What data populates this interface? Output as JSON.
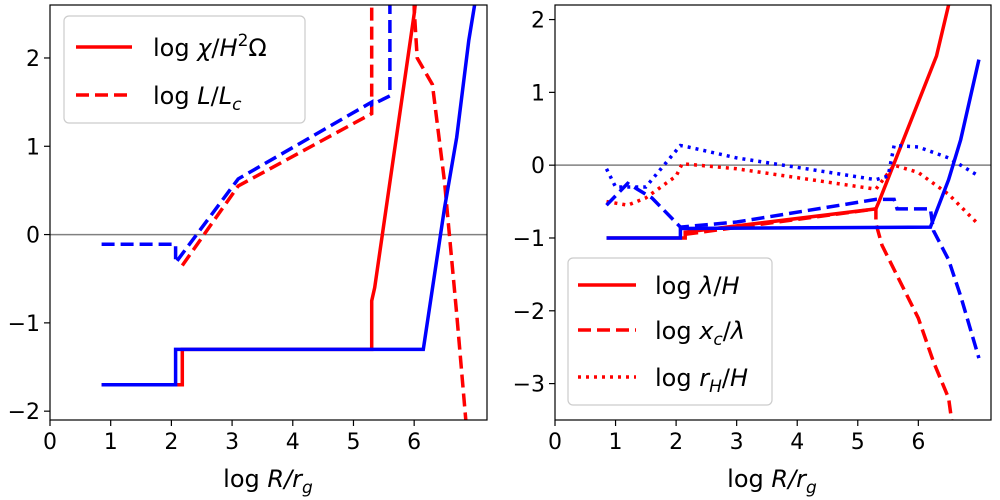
{
  "chart_data": [
    {
      "type": "line",
      "xlabel": "log R/r_g",
      "xlim": [
        0,
        7.2
      ],
      "ylim": [
        -2.1,
        2.6
      ],
      "xticks": [
        0,
        1,
        2,
        3,
        4,
        5,
        6
      ],
      "yticks": [
        -2,
        -1,
        0,
        1,
        2
      ],
      "hline": 0,
      "legend": {
        "position": "top-left",
        "entries": [
          {
            "label": "log χ/H²Ω",
            "color": "#ff0000",
            "style": "solid"
          },
          {
            "label": "log L/L_c",
            "color": "#ff0000",
            "style": "dashed"
          }
        ]
      },
      "series": [
        {
          "name": "red-solid",
          "color": "#ff0000",
          "style": "solid",
          "x": [
            0.85,
            2.18,
            2.18,
            5.3,
            5.3,
            5.35,
            6.0,
            6.02
          ],
          "y": [
            -1.7,
            -1.7,
            -1.3,
            -1.3,
            -0.75,
            -0.6,
            2.5,
            2.62
          ]
        },
        {
          "name": "red-dashed",
          "color": "#ff0000",
          "style": "dashed",
          "x": [
            2.18,
            3.1,
            5.3,
            5.3,
            6.0,
            6.0,
            6.05,
            6.3,
            6.5,
            6.7,
            6.85
          ],
          "y": [
            -0.35,
            0.55,
            1.37,
            2.62,
            2.62,
            2.55,
            2.0,
            1.7,
            0.6,
            -0.9,
            -2.1
          ]
        },
        {
          "name": "blue-solid",
          "color": "#0000ff",
          "style": "solid",
          "x": [
            0.85,
            2.07,
            2.07,
            6.15,
            6.5,
            6.7,
            6.9,
            7.0
          ],
          "y": [
            -1.7,
            -1.7,
            -1.3,
            -1.3,
            0.3,
            1.1,
            2.2,
            2.62
          ]
        },
        {
          "name": "blue-dashed",
          "color": "#0000ff",
          "style": "dashed",
          "x": [
            0.85,
            2.07,
            2.07,
            3.1,
            5.3,
            5.3,
            5.6,
            5.6
          ],
          "y": [
            -0.11,
            -0.11,
            -0.32,
            0.63,
            1.5,
            1.47,
            1.57,
            2.62
          ]
        }
      ]
    },
    {
      "type": "line",
      "xlabel": "log R/r_g",
      "xlim": [
        0,
        7.2
      ],
      "ylim": [
        -3.5,
        2.2
      ],
      "xticks": [
        0,
        1,
        2,
        3,
        4,
        5,
        6
      ],
      "yticks": [
        -3,
        -2,
        -1,
        0,
        1,
        2
      ],
      "hline": 0,
      "legend": {
        "position": "bottom-left",
        "entries": [
          {
            "label": "log λ/H",
            "color": "#ff0000",
            "style": "solid"
          },
          {
            "label": "log x_c/λ",
            "color": "#ff0000",
            "style": "dashed"
          },
          {
            "label": "log r_H/H",
            "color": "#ff0000",
            "style": "dotted"
          }
        ]
      },
      "series": [
        {
          "name": "red-solid",
          "color": "#ff0000",
          "style": "solid",
          "x": [
            0.85,
            2.15,
            2.15,
            5.3,
            5.35,
            6.3,
            6.5
          ],
          "y": [
            -1.0,
            -1.0,
            -0.92,
            -0.6,
            -0.5,
            1.5,
            2.2
          ]
        },
        {
          "name": "red-dashed",
          "color": "#ff0000",
          "style": "dashed",
          "x": [
            2.15,
            5.3,
            5.3,
            5.4,
            6.0,
            6.25,
            6.5,
            6.55
          ],
          "y": [
            -0.95,
            -0.6,
            -0.8,
            -1.1,
            -2.1,
            -2.7,
            -3.2,
            -3.5
          ]
        },
        {
          "name": "red-dotted",
          "color": "#ff0000",
          "style": "dotted",
          "x": [
            0.85,
            1.2,
            1.5,
            2.0,
            2.1,
            3.0,
            5.3,
            5.6,
            6.0,
            6.5,
            7.0
          ],
          "y": [
            -0.5,
            -0.55,
            -0.45,
            -0.15,
            0.02,
            -0.05,
            -0.33,
            0.0,
            -0.1,
            -0.4,
            -0.82
          ]
        },
        {
          "name": "blue-solid",
          "color": "#0000ff",
          "style": "solid",
          "x": [
            0.85,
            2.07,
            2.07,
            6.2,
            6.5,
            6.7,
            7.0
          ],
          "y": [
            -1.0,
            -1.0,
            -0.87,
            -0.85,
            -0.2,
            0.35,
            1.45
          ]
        },
        {
          "name": "blue-dashed",
          "color": "#0000ff",
          "style": "dashed",
          "x": [
            0.85,
            1.2,
            1.6,
            2.07,
            3.0,
            5.3,
            5.6,
            5.65,
            6.2,
            6.25,
            6.5,
            6.7,
            7.0
          ],
          "y": [
            -0.55,
            -0.25,
            -0.45,
            -0.85,
            -0.78,
            -0.47,
            -0.47,
            -0.6,
            -0.6,
            -0.9,
            -1.3,
            -1.8,
            -2.65
          ]
        },
        {
          "name": "blue-dotted",
          "color": "#0000ff",
          "style": "dotted",
          "x": [
            0.85,
            1.0,
            1.5,
            2.07,
            2.2,
            3.0,
            5.3,
            5.5,
            5.6,
            6.0,
            6.5,
            7.0
          ],
          "y": [
            -0.05,
            -0.3,
            -0.3,
            0.27,
            0.25,
            0.1,
            -0.2,
            -0.15,
            0.27,
            0.25,
            0.1,
            -0.15
          ]
        }
      ]
    }
  ]
}
